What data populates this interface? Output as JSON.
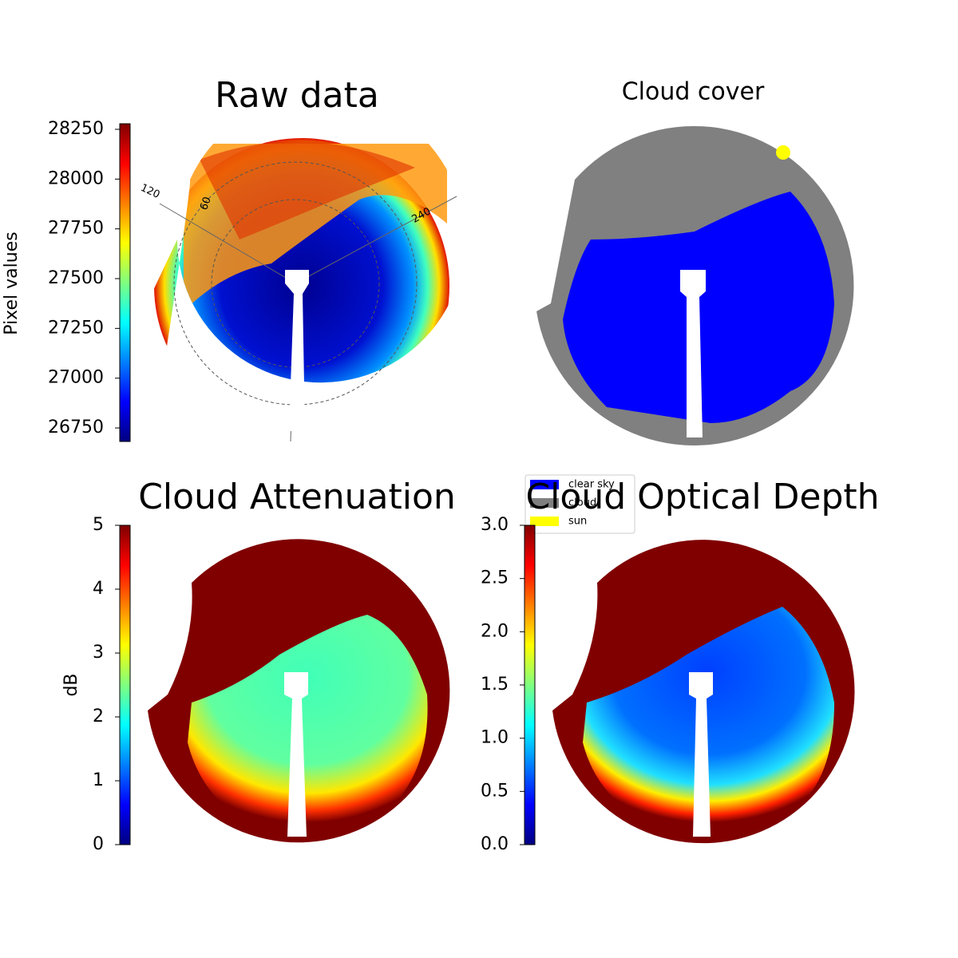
{
  "chart_data": [
    {
      "type": "image",
      "title": "Raw data",
      "colormap": "jet",
      "colorbar": {
        "label": "Pixel values",
        "ylim": [
          26682,
          28278
        ],
        "yticks": [
          26750,
          27000,
          27250,
          27500,
          27750,
          28000,
          28250
        ]
      },
      "polar_labels": [
        "120",
        "60",
        "240"
      ]
    },
    {
      "type": "image",
      "title": "Cloud cover",
      "legend": [
        {
          "name": "clear sky",
          "color": "#0000ff"
        },
        {
          "name": "cloud",
          "color": "#808080"
        },
        {
          "name": "sun",
          "color": "#ffff00"
        }
      ]
    },
    {
      "type": "image",
      "title": "Cloud Attenuation",
      "colormap": "jet",
      "colorbar": {
        "label": "dB",
        "ylim": [
          0,
          5
        ],
        "yticks": [
          0,
          1,
          2,
          3,
          4,
          5
        ]
      }
    },
    {
      "type": "image",
      "title": "Cloud Optical Depth",
      "colormap": "jet",
      "colorbar": {
        "ylim": [
          0,
          3
        ],
        "yticks": [
          {
            "value": 0,
            "label": "0.0"
          },
          {
            "value": 0.5,
            "label": "0.5"
          },
          {
            "value": 1,
            "label": "1.0"
          },
          {
            "value": 1.5,
            "label": "1.5"
          },
          {
            "value": 2,
            "label": "2.0"
          },
          {
            "value": 2.5,
            "label": "2.5"
          },
          {
            "value": 3,
            "label": "3.0"
          }
        ]
      }
    }
  ]
}
